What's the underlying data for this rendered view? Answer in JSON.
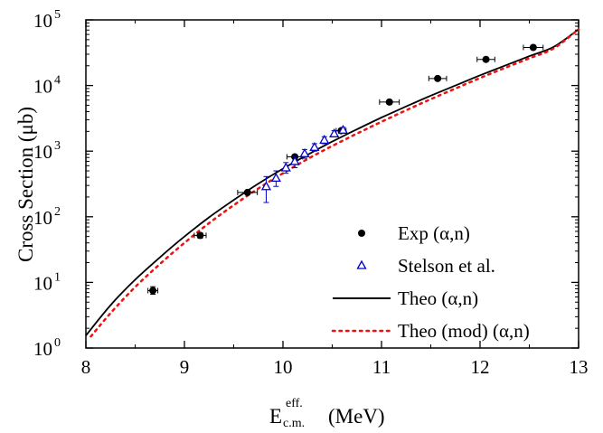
{
  "chart_data": {
    "type": "scatter",
    "title": "",
    "xlabel": {
      "main": "E",
      "sup": "eff.",
      "sub": "c.m.",
      "unit": "(MeV)"
    },
    "ylabel": "Cross Section (μb)",
    "xlim": [
      8,
      13
    ],
    "ylim": [
      1,
      100000
    ],
    "yscale": "log",
    "x_ticks": [
      8,
      9,
      10,
      11,
      12,
      13
    ],
    "x_tick_labels": [
      "8",
      "9",
      "10",
      "11",
      "12",
      "13"
    ],
    "y_ticks": [
      1,
      10,
      100,
      1000,
      10000,
      100000
    ],
    "y_tick_labels": [
      {
        "base": "10",
        "exp": "0"
      },
      {
        "base": "10",
        "exp": "1"
      },
      {
        "base": "10",
        "exp": "2"
      },
      {
        "base": "10",
        "exp": "3"
      },
      {
        "base": "10",
        "exp": "4"
      },
      {
        "base": "10",
        "exp": "5"
      }
    ],
    "grid": false,
    "legend_position": "bottom-right",
    "series": [
      {
        "name": "Exp (α,n)",
        "kind": "points",
        "marker": "filled-circle",
        "color": "#000000",
        "points": [
          {
            "x": 8.68,
            "y": 7.5,
            "xerr": 0.05,
            "ylo": 6.6,
            "yhi": 8.6
          },
          {
            "x": 9.16,
            "y": 52,
            "xerr": 0.06,
            "ylo": 47,
            "yhi": 57
          },
          {
            "x": 9.64,
            "y": 235,
            "xerr": 0.1,
            "ylo": 222,
            "yhi": 248
          },
          {
            "x": 10.12,
            "y": 820,
            "xerr": 0.08,
            "ylo": 760,
            "yhi": 880
          },
          {
            "x": 10.59,
            "y": 2050,
            "xerr": 0.05,
            "ylo": 1920,
            "yhi": 2180
          },
          {
            "x": 11.08,
            "y": 5600,
            "xerr": 0.1,
            "ylo": 5200,
            "yhi": 6000
          },
          {
            "x": 11.57,
            "y": 12800,
            "xerr": 0.09,
            "ylo": 12000,
            "yhi": 13600
          },
          {
            "x": 12.06,
            "y": 25000,
            "xerr": 0.09,
            "ylo": 23500,
            "yhi": 26500
          },
          {
            "x": 12.54,
            "y": 38000,
            "xerr": 0.1,
            "ylo": 35800,
            "yhi": 40200
          }
        ]
      },
      {
        "name": "Stelson et al.",
        "kind": "points",
        "marker": "open-triangle",
        "color": "#0000cc",
        "points": [
          {
            "x": 9.83,
            "y": 290,
            "ylo": 165,
            "yhi": 410
          },
          {
            "x": 9.93,
            "y": 390,
            "ylo": 290,
            "yhi": 500
          },
          {
            "x": 10.03,
            "y": 560,
            "ylo": 460,
            "yhi": 670
          },
          {
            "x": 10.12,
            "y": 700,
            "ylo": 560,
            "yhi": 830
          },
          {
            "x": 10.22,
            "y": 920,
            "ylo": 780,
            "yhi": 1060
          },
          {
            "x": 10.32,
            "y": 1150,
            "ylo": 1000,
            "yhi": 1300
          },
          {
            "x": 10.42,
            "y": 1480,
            "ylo": 1300,
            "yhi": 1660
          },
          {
            "x": 10.52,
            "y": 1850,
            "ylo": 1650,
            "yhi": 2050
          },
          {
            "x": 10.61,
            "y": 2100,
            "ylo": 1900,
            "yhi": 2300
          }
        ]
      },
      {
        "name": "Theo (α,n)",
        "kind": "line",
        "dash": "solid",
        "color": "#000000",
        "points": [
          {
            "x": 8.0,
            "y": 1.55
          },
          {
            "x": 8.25,
            "y": 4.5
          },
          {
            "x": 8.5,
            "y": 11
          },
          {
            "x": 8.75,
            "y": 24
          },
          {
            "x": 9.0,
            "y": 50
          },
          {
            "x": 9.25,
            "y": 98
          },
          {
            "x": 9.5,
            "y": 180
          },
          {
            "x": 9.75,
            "y": 320
          },
          {
            "x": 10.0,
            "y": 540
          },
          {
            "x": 10.25,
            "y": 880
          },
          {
            "x": 10.5,
            "y": 1400
          },
          {
            "x": 10.75,
            "y": 2150
          },
          {
            "x": 11.0,
            "y": 3250
          },
          {
            "x": 11.25,
            "y": 4800
          },
          {
            "x": 11.5,
            "y": 7000
          },
          {
            "x": 11.75,
            "y": 10000
          },
          {
            "x": 12.0,
            "y": 14300
          },
          {
            "x": 12.25,
            "y": 20000
          },
          {
            "x": 12.5,
            "y": 28000
          },
          {
            "x": 12.75,
            "y": 39000
          },
          {
            "x": 13.0,
            "y": 72000
          }
        ]
      },
      {
        "name": "Theo (mod) (α,n)",
        "kind": "line",
        "dash": "dotted",
        "color": "#ee1111",
        "points": [
          {
            "x": 8.05,
            "y": 1.5
          },
          {
            "x": 8.25,
            "y": 3.4
          },
          {
            "x": 8.5,
            "y": 8.5
          },
          {
            "x": 8.75,
            "y": 19
          },
          {
            "x": 9.0,
            "y": 40
          },
          {
            "x": 9.25,
            "y": 80
          },
          {
            "x": 9.5,
            "y": 150
          },
          {
            "x": 9.75,
            "y": 270
          },
          {
            "x": 10.0,
            "y": 460
          },
          {
            "x": 10.25,
            "y": 760
          },
          {
            "x": 10.5,
            "y": 1200
          },
          {
            "x": 10.75,
            "y": 1850
          },
          {
            "x": 11.0,
            "y": 2800
          },
          {
            "x": 11.25,
            "y": 4200
          },
          {
            "x": 11.5,
            "y": 6200
          },
          {
            "x": 11.75,
            "y": 9000
          },
          {
            "x": 12.0,
            "y": 13000
          },
          {
            "x": 12.25,
            "y": 18500
          },
          {
            "x": 12.5,
            "y": 26000
          },
          {
            "x": 12.75,
            "y": 37000
          },
          {
            "x": 13.0,
            "y": 72000
          }
        ]
      }
    ]
  }
}
